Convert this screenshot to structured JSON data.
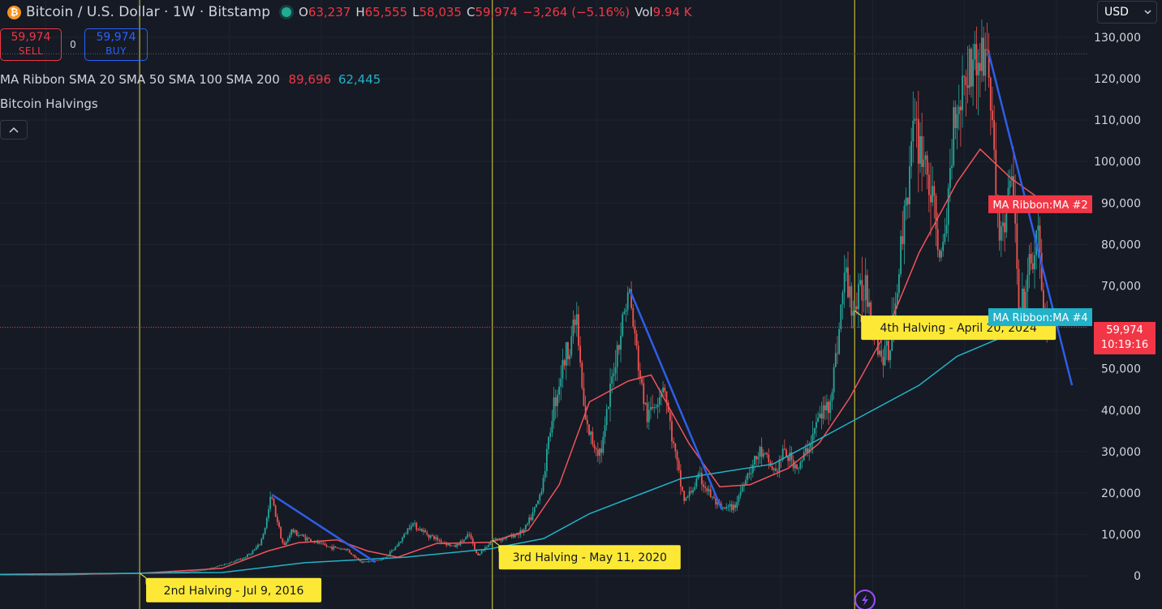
{
  "header": {
    "coin_icon": "bitcoin-icon",
    "symbol_title": "Bitcoin / U.S. Dollar · 1W · Bitstamp",
    "ohlc": {
      "open_label": "O",
      "open": "63,237",
      "high_label": "H",
      "high": "65,555",
      "low_label": "L",
      "low": "58,035",
      "close_label": "C",
      "close": "59,974",
      "change": "−3,264 (−5.16%)",
      "vol_label": "Vol",
      "vol": "9.94 K"
    }
  },
  "trade": {
    "sell_price": "59,974",
    "sell_label": "SELL",
    "spread": "0",
    "buy_price": "59,974",
    "buy_label": "BUY"
  },
  "indicators": {
    "ma_ribbon_label": "MA Ribbon SMA 20 SMA 50 SMA 100 SMA 200",
    "ma_value_red": "89,696",
    "ma_value_teal": "62,445",
    "halvings_label": "Bitcoin Halvings"
  },
  "currency": "USD",
  "price_tag": {
    "price": "59,974",
    "countdown": "10:19:16"
  },
  "colors": {
    "background": "#151a24",
    "up": "#26a69a",
    "down": "#ef5350",
    "ma_red": "#f0535c",
    "ma_teal": "#22b2c9",
    "trendline": "#2f5ee8",
    "halving_line": "#e8d43a",
    "halving_label_bg": "#fde935"
  },
  "chart_data": {
    "type": "candlestick",
    "y_axis": {
      "ticks": [
        0,
        10000,
        20000,
        30000,
        40000,
        50000,
        60000,
        70000,
        80000,
        90000,
        100000,
        110000,
        120000,
        130000
      ],
      "tick_labels": [
        "0",
        "10,000",
        "20,000",
        "30,000",
        "40,000",
        "50,000",
        "60,000",
        "70,000",
        "80,000",
        "90,000",
        "100,000",
        "110,000",
        "120,000",
        "130,000"
      ],
      "ylim": [
        -8000,
        139000
      ]
    },
    "x_range": [
      "2015-01-01",
      "2026-11-01"
    ],
    "price_series": [
      [
        "2015-01-01",
        280
      ],
      [
        "2015-09-01",
        240
      ],
      [
        "2016-01-01",
        430
      ],
      [
        "2016-07-09",
        650
      ],
      [
        "2016-12-01",
        950
      ],
      [
        "2017-03-01",
        1200
      ],
      [
        "2017-06-01",
        2600
      ],
      [
        "2017-09-01",
        4400
      ],
      [
        "2017-11-01",
        7500
      ],
      [
        "2017-12-17",
        19600
      ],
      [
        "2018-01-15",
        12500
      ],
      [
        "2018-02-06",
        7000
      ],
      [
        "2018-03-05",
        11000
      ],
      [
        "2018-05-01",
        9200
      ],
      [
        "2018-08-01",
        7000
      ],
      [
        "2018-10-15",
        6400
      ],
      [
        "2018-12-15",
        3300
      ],
      [
        "2019-03-01",
        3900
      ],
      [
        "2019-06-26",
        12900
      ],
      [
        "2019-09-01",
        10000
      ],
      [
        "2019-12-15",
        7000
      ],
      [
        "2020-02-15",
        10000
      ],
      [
        "2020-03-15",
        5000
      ],
      [
        "2020-05-11",
        8600
      ],
      [
        "2020-07-15",
        9300
      ],
      [
        "2020-09-15",
        10800
      ],
      [
        "2020-11-15",
        18500
      ],
      [
        "2021-01-08",
        40000
      ],
      [
        "2021-02-15",
        50000
      ],
      [
        "2021-04-14",
        63000
      ],
      [
        "2021-05-19",
        37000
      ],
      [
        "2021-06-20",
        32000
      ],
      [
        "2021-07-20",
        30000
      ],
      [
        "2021-09-07",
        50000
      ],
      [
        "2021-10-20",
        64000
      ],
      [
        "2021-11-10",
        68800
      ],
      [
        "2022-01-20",
        38000
      ],
      [
        "2022-03-28",
        47000
      ],
      [
        "2022-05-12",
        29000
      ],
      [
        "2022-06-18",
        18000
      ],
      [
        "2022-08-15",
        24000
      ],
      [
        "2022-11-09",
        16000
      ],
      [
        "2022-12-30",
        16500
      ],
      [
        "2023-02-15",
        24000
      ],
      [
        "2023-04-15",
        30000
      ],
      [
        "2023-06-15",
        25000
      ],
      [
        "2023-07-15",
        30000
      ],
      [
        "2023-09-15",
        26000
      ],
      [
        "2023-12-01",
        38000
      ],
      [
        "2024-01-15",
        42000
      ],
      [
        "2024-03-14",
        73000
      ],
      [
        "2024-04-20",
        64000
      ],
      [
        "2024-06-07",
        71000
      ],
      [
        "2024-08-05",
        53000
      ],
      [
        "2024-09-06",
        54000
      ],
      [
        "2024-11-13",
        92000
      ],
      [
        "2024-12-17",
        108000
      ],
      [
        "2025-02-01",
        100000
      ],
      [
        "2025-04-08",
        75000
      ],
      [
        "2025-05-22",
        111000
      ],
      [
        "2025-07-14",
        123000
      ],
      [
        "2025-08-14",
        124000
      ],
      [
        "2025-10-06",
        126000
      ],
      [
        "2025-11-21",
        81000
      ],
      [
        "2026-01-14",
        97000
      ],
      [
        "2026-02-06",
        61000
      ],
      [
        "2026-03-15",
        72000
      ],
      [
        "2026-04-20",
        82000
      ],
      [
        "2026-05-25",
        60000
      ]
    ],
    "series": [
      {
        "role": "ma_red",
        "points": [
          [
            "2015-01-01",
            320
          ],
          [
            "2016-07-01",
            600
          ],
          [
            "2017-06-01",
            1800
          ],
          [
            "2017-12-01",
            6000
          ],
          [
            "2018-04-01",
            8000
          ],
          [
            "2018-09-01",
            8700
          ],
          [
            "2019-01-01",
            6000
          ],
          [
            "2019-05-01",
            4500
          ],
          [
            "2019-10-01",
            7800
          ],
          [
            "2020-05-01",
            8100
          ],
          [
            "2020-10-01",
            11000
          ],
          [
            "2021-02-01",
            22000
          ],
          [
            "2021-06-01",
            42000
          ],
          [
            "2021-11-01",
            47000
          ],
          [
            "2022-02-01",
            48500
          ],
          [
            "2022-07-01",
            32000
          ],
          [
            "2022-11-01",
            21500
          ],
          [
            "2023-03-01",
            22000
          ],
          [
            "2023-08-01",
            26000
          ],
          [
            "2023-12-01",
            32000
          ],
          [
            "2024-04-01",
            43000
          ],
          [
            "2024-09-01",
            60000
          ],
          [
            "2025-01-01",
            78000
          ],
          [
            "2025-06-01",
            95000
          ],
          [
            "2025-09-01",
            103000
          ],
          [
            "2026-01-01",
            96000
          ],
          [
            "2026-05-25",
            89696
          ]
        ]
      },
      {
        "role": "ma_teal",
        "points": [
          [
            "2015-01-01",
            350
          ],
          [
            "2017-06-01",
            800
          ],
          [
            "2018-05-01",
            3200
          ],
          [
            "2019-06-01",
            4500
          ],
          [
            "2020-05-01",
            6500
          ],
          [
            "2020-12-01",
            9000
          ],
          [
            "2021-06-01",
            15000
          ],
          [
            "2022-01-01",
            20000
          ],
          [
            "2022-06-01",
            23500
          ],
          [
            "2023-06-01",
            27000
          ],
          [
            "2024-01-01",
            34000
          ],
          [
            "2024-06-01",
            39000
          ],
          [
            "2025-01-01",
            46000
          ],
          [
            "2025-06-01",
            53000
          ],
          [
            "2026-01-01",
            58500
          ],
          [
            "2026-05-25",
            62445
          ]
        ]
      }
    ],
    "trendlines": [
      [
        [
          "2017-12-17",
          19600
        ],
        [
          "2019-02-01",
          3300
        ]
      ],
      [
        [
          "2021-11-10",
          68800
        ],
        [
          "2022-11-09",
          16000
        ]
      ],
      [
        [
          "2025-10-06",
          126000
        ],
        [
          "2026-09-01",
          46000
        ]
      ]
    ],
    "current_price": 59974,
    "ath_level": 126000,
    "halvings": [
      {
        "date": "2016-07-09",
        "label": "2nd Halving - Jul 9, 2016"
      },
      {
        "date": "2020-05-11",
        "label": "3rd Halving - May 11, 2020"
      },
      {
        "date": "2024-04-20",
        "label": "4th Halving - April 20, 2024"
      }
    ],
    "ma_labels": [
      {
        "text": "MA Ribbon:MA #2",
        "value": 89696,
        "color": "#f23645"
      },
      {
        "text": "MA Ribbon:MA #4",
        "value": 62445,
        "color": "#22b2c9"
      }
    ]
  }
}
